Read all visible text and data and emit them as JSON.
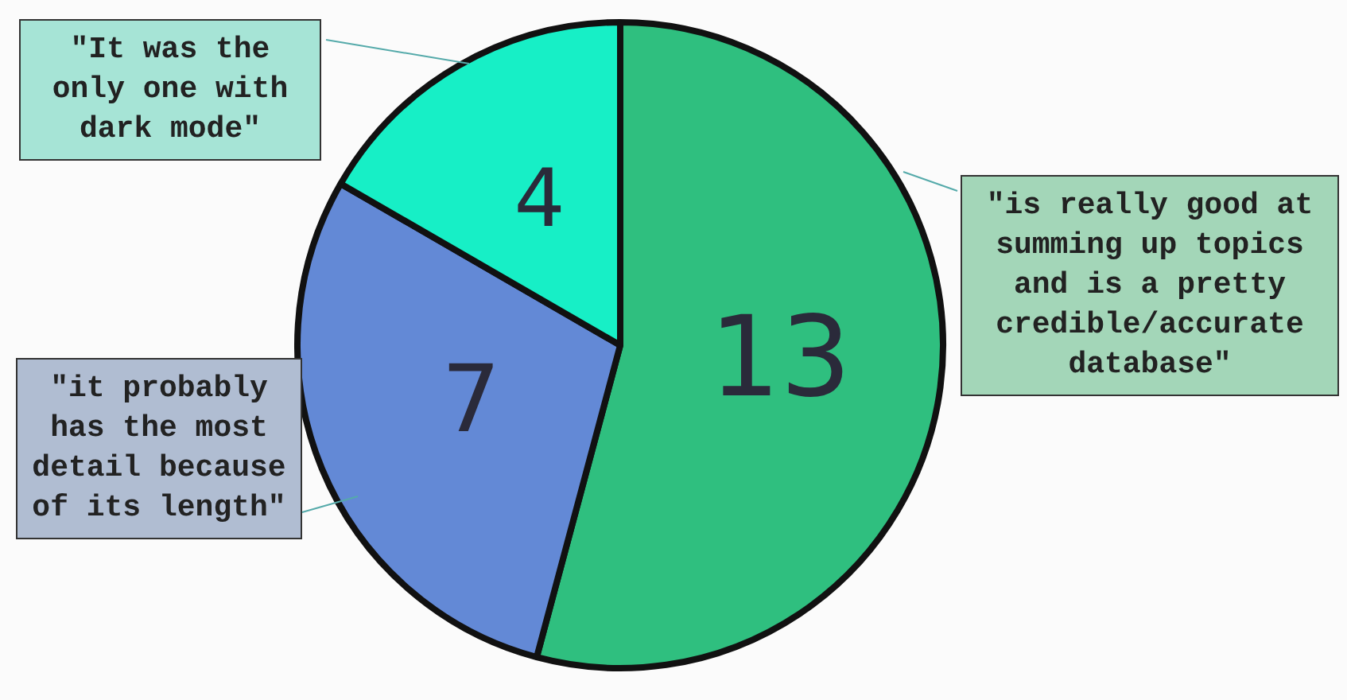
{
  "chart_data": {
    "type": "pie",
    "categories": [
      null,
      null,
      null
    ],
    "values": [
      13,
      7,
      4
    ],
    "colors": [
      "#2fbf7f",
      "#6389d6",
      "#17efc6"
    ],
    "data_labels": true,
    "annotations": [
      "\"It was the only one with dark mode\"",
      "\"it probably has the most detail because of its length\"",
      "\"is really good at summing up topics and is a pretty credible/accurate database\""
    ]
  }
}
